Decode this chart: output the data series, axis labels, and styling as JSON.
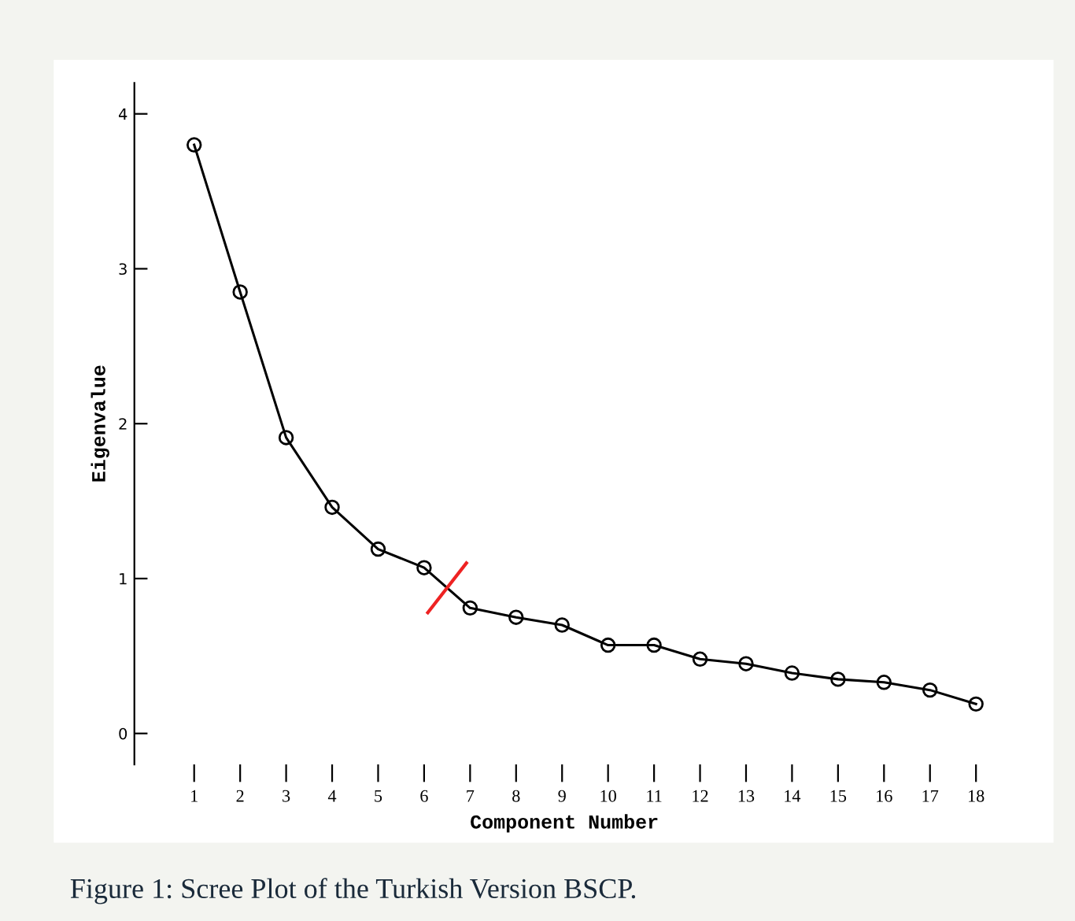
{
  "chart_data": {
    "type": "line",
    "xlabel": "Component Number",
    "ylabel": "Eigenvalue",
    "categories": [
      "1",
      "2",
      "3",
      "4",
      "5",
      "6",
      "7",
      "8",
      "9",
      "10",
      "11",
      "12",
      "13",
      "14",
      "15",
      "16",
      "17",
      "18"
    ],
    "series": [
      {
        "color": "#000000",
        "values": [
          3.8,
          2.85,
          1.91,
          1.46,
          1.19,
          1.07,
          0.81,
          0.75,
          0.7,
          0.57,
          0.57,
          0.48,
          0.45,
          0.39,
          0.35,
          0.33,
          0.28,
          0.19
        ]
      }
    ],
    "ylim": [
      -0.2,
      4.2
    ],
    "yticks": [
      0,
      1,
      2,
      3,
      4
    ],
    "marker": "circle",
    "line_style": "solid",
    "grid": false,
    "legend": false,
    "annotations": [
      "Figure 1: Scree Plot of the Turkish Version BSCP."
    ]
  }
}
